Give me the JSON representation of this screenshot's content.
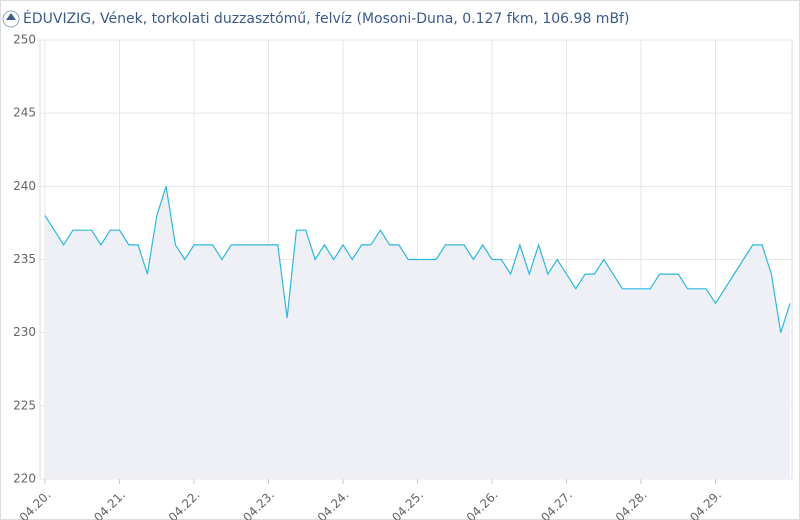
{
  "chart_data": {
    "type": "area-line",
    "title": "ÉDUVIZIG, Vének, torkolati duzzasztómű, felvíz (Mosoni-Duna, 0.127 fkm, 106.98 mBf)",
    "categories": [
      "04.20.",
      null,
      null,
      null,
      null,
      null,
      null,
      null,
      "04.21.",
      null,
      null,
      null,
      null,
      null,
      null,
      null,
      "04.22.",
      null,
      null,
      null,
      null,
      null,
      null,
      null,
      "04.23.",
      null,
      null,
      null,
      null,
      null,
      null,
      null,
      "04.24.",
      null,
      null,
      null,
      null,
      null,
      null,
      null,
      "04.25.",
      null,
      null,
      null,
      null,
      null,
      null,
      null,
      "04.26.",
      null,
      null,
      null,
      null,
      null,
      null,
      null,
      "04.27.",
      null,
      null,
      null,
      null,
      null,
      null,
      null,
      "04.28.",
      null,
      null,
      null,
      null,
      null,
      null,
      null,
      "04.29.",
      null,
      null,
      null,
      null,
      null,
      null,
      null,
      null
    ],
    "values": [
      238,
      237,
      236,
      237,
      237,
      237,
      236,
      237,
      237,
      236,
      236,
      234,
      238,
      240,
      236,
      235,
      236,
      236,
      236,
      235,
      236,
      236,
      236,
      236,
      236,
      236,
      231,
      237,
      237,
      235,
      236,
      235,
      236,
      235,
      236,
      236,
      237,
      236,
      236,
      235,
      235,
      235,
      235,
      236,
      236,
      236,
      235,
      236,
      235,
      235,
      234,
      236,
      234,
      236,
      234,
      235,
      234,
      233,
      234,
      234,
      235,
      234,
      233,
      233,
      233,
      233,
      234,
      234,
      234,
      233,
      233,
      233,
      232,
      233,
      234,
      235,
      236,
      236,
      234,
      230,
      232
    ],
    "color": "#2bb9df",
    "fill": "#eef0f6",
    "ylim": [
      220,
      250
    ],
    "yticks": [
      220,
      225,
      230,
      235,
      240,
      245,
      250
    ],
    "grid": true
  }
}
